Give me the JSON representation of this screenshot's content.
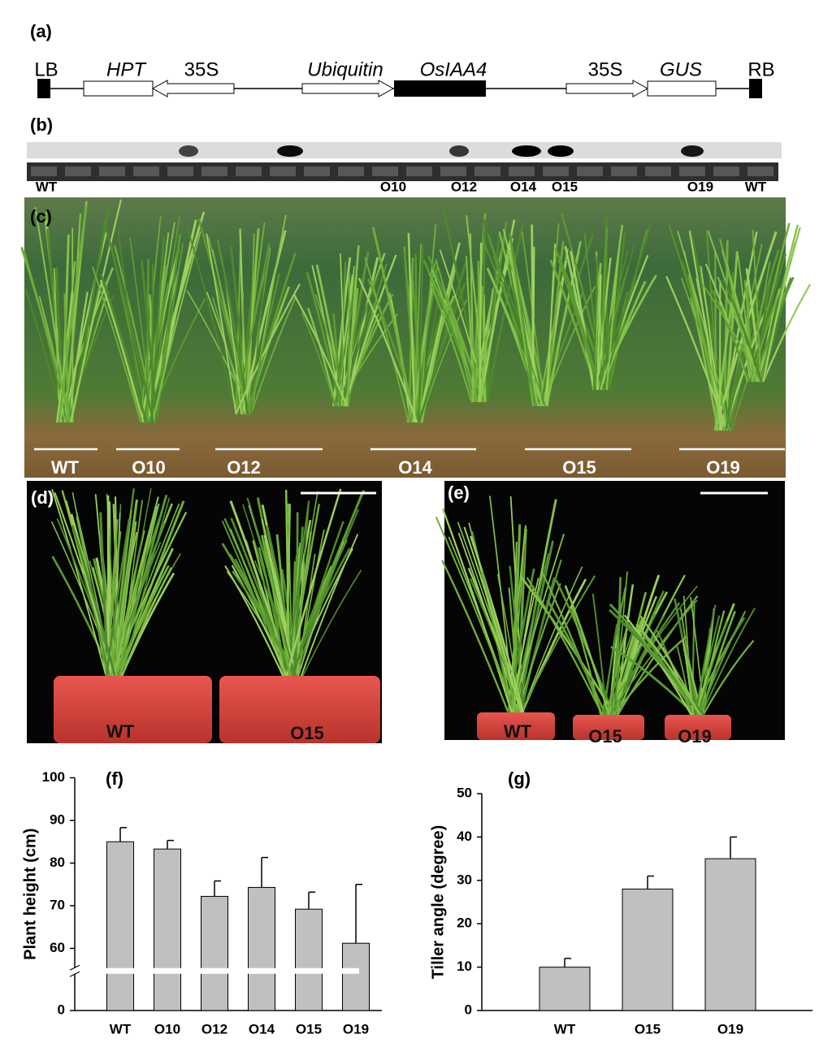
{
  "panels": {
    "a": {
      "label": "(a)",
      "construct": [
        "LB",
        "HPT",
        "35S",
        "Ubiquitin",
        "OsIAA4",
        "35S",
        "GUS",
        "RB"
      ]
    },
    "b": {
      "label": "(b)",
      "lanes": [
        "WT",
        "O10",
        "O12",
        "O14",
        "O15",
        "O19",
        "WT"
      ]
    },
    "c": {
      "label": "(c)",
      "lines": [
        "WT",
        "O10",
        "O12",
        "O14",
        "O15",
        "O19"
      ]
    },
    "d": {
      "label": "(d)",
      "pots": [
        "WT",
        "O15"
      ]
    },
    "e": {
      "label": "(e)",
      "pots": [
        "WT",
        "O15",
        "O19"
      ]
    }
  },
  "chart_data": [
    {
      "type": "bar",
      "panel_label": "(f)",
      "y_label": "Plant height (cm)",
      "categories": [
        "WT",
        "O10",
        "O12",
        "O14",
        "O15",
        "O19"
      ],
      "values": [
        85,
        83.3,
        72.2,
        74.3,
        69.2,
        61.2
      ],
      "errors": [
        3.3,
        2,
        3.6,
        7,
        4,
        13.8
      ],
      "color": "#c0c0c0",
      "ylim": [
        0,
        100
      ],
      "axis_break": [
        9,
        55
      ],
      "yticks": [
        0,
        60,
        70,
        80,
        90,
        100
      ]
    },
    {
      "type": "bar",
      "panel_label": "(g)",
      "y_label": "Tiller angle (degree)",
      "categories": [
        "WT",
        "O15",
        "O19"
      ],
      "values": [
        10,
        28,
        35
      ],
      "errors": [
        2,
        3,
        5
      ],
      "color": "#c0c0c0",
      "ylim": [
        0,
        50
      ],
      "yticks": [
        0,
        10,
        20,
        30,
        40,
        50
      ]
    }
  ]
}
